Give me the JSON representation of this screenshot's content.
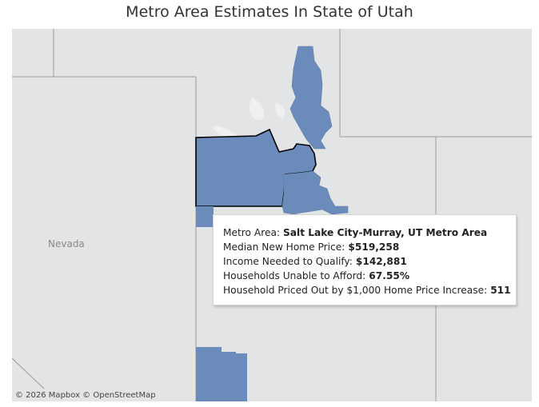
{
  "title": "Metro Area Estimates In State of Utah",
  "map": {
    "neighbor_label": "Nevada",
    "attribution": "© 2026 Mapbox  © OpenStreetMap",
    "fill_color": "#6b8cba",
    "selected_outline_color": "#000000"
  },
  "tooltip": {
    "rows": [
      {
        "label": "Metro Area:",
        "value": "Salt Lake City-Murray, UT Metro Area"
      },
      {
        "label": "Median New Home Price:",
        "value": "$519,258"
      },
      {
        "label": "Income Needed to Qualify:",
        "value": "$142,881"
      },
      {
        "label": "Households Unable to Afford:",
        "value": "67.55%"
      },
      {
        "label": "Household Priced Out by $1,000 Home Price Increase:",
        "value": "511"
      }
    ]
  }
}
